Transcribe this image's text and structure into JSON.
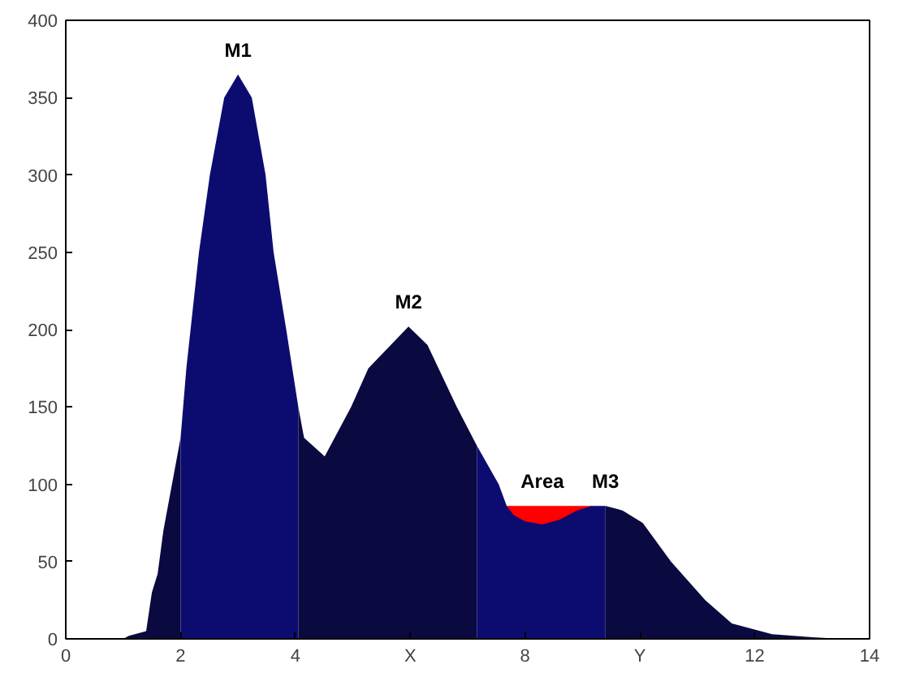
{
  "chart_data": {
    "type": "area",
    "xlim": [
      0,
      14
    ],
    "ylim": [
      0,
      400
    ],
    "xticks": [
      0,
      2,
      4,
      {
        "value": 6,
        "label": "X"
      },
      8,
      {
        "value": 10,
        "label": "Y"
      },
      12,
      14
    ],
    "yticks": [
      0,
      50,
      100,
      150,
      200,
      250,
      300,
      350,
      400
    ],
    "series": [
      {
        "color": "#0a0a40",
        "x": [
          1.0,
          1.1,
          1.4,
          1.5,
          1.6,
          1.7,
          1.8,
          1.9,
          2.0
        ],
        "values": [
          0,
          2,
          5,
          30,
          42,
          70,
          90,
          110,
          130
        ]
      },
      {
        "color": "#0c0c70",
        "x": [
          2.0,
          2.1,
          2.32,
          2.51,
          2.76,
          3.0,
          3.24,
          3.48,
          3.62,
          3.84,
          4.05
        ],
        "values": [
          130,
          175,
          250,
          300,
          350,
          365,
          350,
          300,
          250,
          200,
          150
        ]
      },
      {
        "color": "#0a0a40",
        "x": [
          4.05,
          4.15,
          4.51,
          4.97,
          5.27,
          5.97,
          6.3,
          6.81,
          7.16
        ],
        "values": [
          150,
          130,
          118,
          150,
          175,
          202,
          190,
          150,
          125
        ]
      },
      {
        "color": "#ff0000",
        "x": [
          7.68,
          9.16
        ],
        "values": [
          86,
          86
        ]
      },
      {
        "color": "#0c0c70",
        "x": [
          7.16,
          7.54,
          7.68,
          7.8,
          8.0,
          8.3,
          8.6,
          8.9,
          9.16,
          9.4
        ],
        "values": [
          125,
          100,
          86,
          80,
          76,
          74,
          77,
          83,
          86,
          86
        ]
      },
      {
        "color": "#0a0a40",
        "x": [
          9.4,
          9.7,
          10.05,
          10.54,
          11.14,
          11.6,
          12.3,
          13.0,
          13.5
        ],
        "values": [
          86,
          83,
          75,
          50,
          25,
          10,
          3,
          1,
          0
        ]
      }
    ],
    "annotations": [
      {
        "text": "M1",
        "x": 3.0,
        "y": 365
      },
      {
        "text": "M2",
        "x": 5.97,
        "y": 202
      },
      {
        "text": "Area",
        "x": 8.3,
        "y": 86
      },
      {
        "text": "M3",
        "x": 9.4,
        "y": 86
      }
    ]
  }
}
